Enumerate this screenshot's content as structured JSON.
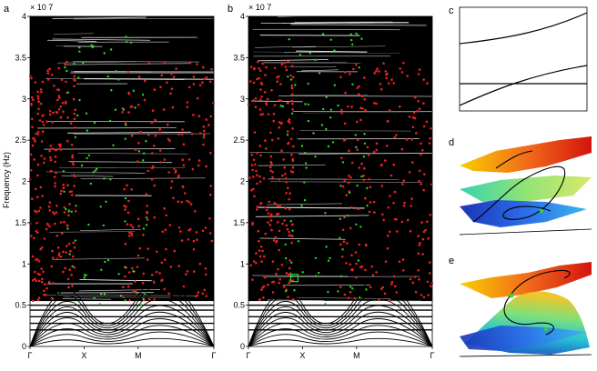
{
  "figure": {
    "panels": [
      {
        "id": "a",
        "label": "a"
      },
      {
        "id": "b",
        "label": "b"
      },
      {
        "id": "c",
        "label": "c"
      },
      {
        "id": "d",
        "label": "d"
      },
      {
        "id": "e",
        "label": "e"
      }
    ]
  },
  "chart_data": [
    {
      "panel": "a",
      "type": "scatter",
      "title": "",
      "xlabel": "",
      "ylabel": "Frequency (Hz)",
      "y_multiplier_label": "× 10 7",
      "x_tick_labels": [
        "Γ",
        "X",
        "M",
        "Γ"
      ],
      "x_tick_positions": [
        0,
        1,
        2,
        3.4
      ],
      "xlim": [
        0,
        3.4
      ],
      "y_ticks": [
        0,
        0.5,
        1,
        1.5,
        2,
        2.5,
        3,
        3.5,
        4
      ],
      "ylim": [
        0,
        4
      ],
      "background": "black band structure",
      "series": [
        {
          "name": "dispersion bands",
          "color": "#ffffff"
        },
        {
          "name": "red markers",
          "color": "#e8231f"
        },
        {
          "name": "green markers",
          "color": "#2fd62a"
        }
      ]
    },
    {
      "panel": "b",
      "type": "scatter",
      "title": "",
      "xlabel": "",
      "ylabel": "",
      "y_multiplier_label": "× 10 7",
      "x_tick_labels": [
        "Γ",
        "X",
        "M",
        "Γ"
      ],
      "x_tick_positions": [
        0,
        1,
        2,
        3.4
      ],
      "xlim": [
        0,
        3.4
      ],
      "y_ticks": [
        0,
        0.5,
        1,
        1.5,
        2,
        2.5,
        3,
        3.5,
        4
      ],
      "ylim": [
        0,
        4
      ],
      "highlight_box": {
        "k": 0.85,
        "f": 0.83,
        "color": "#2fd62a"
      },
      "series": [
        {
          "name": "dispersion bands",
          "color": "#ffffff"
        },
        {
          "name": "red markers",
          "color": "#e8231f"
        },
        {
          "name": "green markers",
          "color": "#2fd62a"
        }
      ]
    },
    {
      "panel": "c",
      "type": "line",
      "title": "",
      "xlabel": "",
      "ylabel": "",
      "note": "zoom of avoided crossing"
    },
    {
      "panel": "d",
      "type": "surface",
      "title": "",
      "note": "3D dispersion surfaces"
    },
    {
      "panel": "e",
      "type": "surface",
      "title": "",
      "note": "3D dispersion surfaces"
    }
  ],
  "colors": {
    "red": "#e8231f",
    "green": "#2fd62a",
    "black": "#000000",
    "white": "#ffffff"
  }
}
